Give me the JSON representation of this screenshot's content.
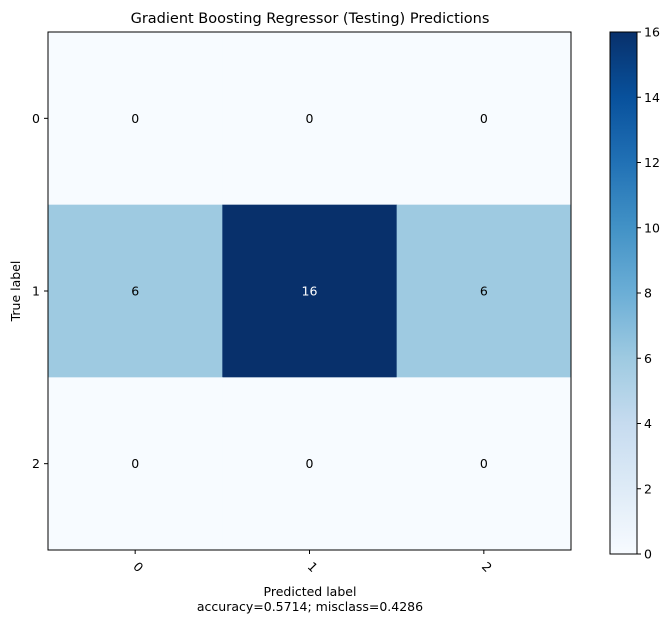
{
  "chart_data": {
    "type": "heatmap",
    "title": "Gradient Boosting Regressor (Testing) Predictions",
    "xlabel": "Predicted label",
    "xlabel_sub": "accuracy=0.5714; misclass=0.4286",
    "ylabel": "True label",
    "x_categories": [
      "0",
      "1",
      "2"
    ],
    "y_categories": [
      "0",
      "1",
      "2"
    ],
    "matrix": [
      [
        0,
        0,
        0
      ],
      [
        6,
        16,
        6
      ],
      [
        0,
        0,
        0
      ]
    ],
    "colormap": "Blues",
    "vmin": 0,
    "vmax": 16,
    "colorbar_ticks": [
      0,
      2,
      4,
      6,
      8,
      10,
      12,
      14,
      16
    ],
    "text_dark_color": "#000000",
    "text_light_color": "#ffffff"
  }
}
